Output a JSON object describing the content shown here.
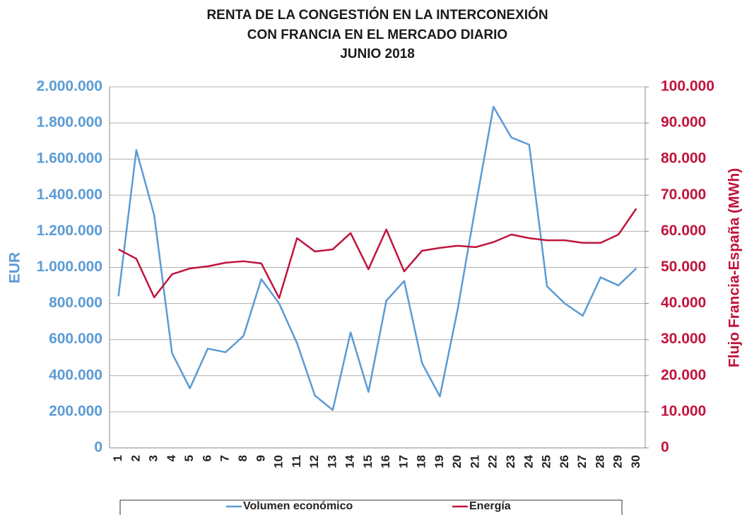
{
  "chart_data": {
    "type": "line",
    "title": [
      "RENTA DE LA CONGESTIÓN EN LA INTERCONEXIÓN",
      "CON FRANCIA EN EL MERCADO DIARIO",
      "JUNIO 2018"
    ],
    "y_label": "EUR",
    "y2_label": "Flujo Francia-España (MWh)",
    "categories": [
      "1",
      "2",
      "3",
      "4",
      "5",
      "6",
      "7",
      "8",
      "9",
      "10",
      "11",
      "12",
      "13",
      "14",
      "15",
      "16",
      "17",
      "18",
      "19",
      "20",
      "21",
      "22",
      "23",
      "24",
      "25",
      "26",
      "27",
      "28",
      "29",
      "30"
    ],
    "series": [
      {
        "name": "Volumen económico",
        "color": "#5b9bd5",
        "axis": "y",
        "values": [
          840000,
          1650000,
          1290000,
          525000,
          330000,
          550000,
          530000,
          620000,
          935000,
          800000,
          580000,
          290000,
          210000,
          640000,
          310000,
          815000,
          925000,
          470000,
          285000,
          770000,
          1340000,
          1890000,
          1720000,
          1680000,
          895000,
          800000,
          732000,
          945000,
          900000,
          995000
        ]
      },
      {
        "name": "Energía",
        "color": "#c0143c",
        "axis": "y2",
        "values": [
          55000,
          52400,
          41700,
          48100,
          49700,
          50300,
          51300,
          51700,
          51100,
          41500,
          58100,
          54400,
          55000,
          59500,
          49500,
          60500,
          48900,
          54600,
          55400,
          56000,
          55600,
          57000,
          59100,
          58100,
          57500,
          57500,
          56800,
          56800,
          59100,
          66300
        ]
      }
    ],
    "ylim": [
      0,
      2000000
    ],
    "yticks": [
      0,
      {
        "value": 200000,
        "label": "200.000"
      },
      {
        "value": 400000,
        "label": "400.000"
      },
      {
        "value": 600000,
        "label": "600.000"
      },
      {
        "value": 800000,
        "label": "800.000"
      },
      {
        "value": 1000000,
        "label": "1.000.000"
      },
      {
        "value": 1200000,
        "label": "1.200.000"
      },
      {
        "value": 1400000,
        "label": "1.400.000"
      },
      {
        "value": 1600000,
        "label": "1.600.000"
      },
      {
        "value": 1800000,
        "label": "1.800.000"
      },
      {
        "value": 2000000,
        "label": "2.000.000"
      }
    ],
    "y2lim": [
      0,
      100000
    ],
    "y2ticks": [
      0,
      {
        "value": 10000,
        "label": "10.000"
      },
      {
        "value": 20000,
        "label": "20.000"
      },
      {
        "value": 30000,
        "label": "30.000"
      },
      {
        "value": 40000,
        "label": "40.000"
      },
      {
        "value": 50000,
        "label": "50.000"
      },
      {
        "value": 60000,
        "label": "60.000"
      },
      {
        "value": 70000,
        "label": "70.000"
      },
      {
        "value": 80000,
        "label": "80.000"
      },
      {
        "value": 90000,
        "label": "90.000"
      },
      {
        "value": 100000,
        "label": "100.000"
      }
    ],
    "grid": true,
    "legend": "bottom"
  }
}
